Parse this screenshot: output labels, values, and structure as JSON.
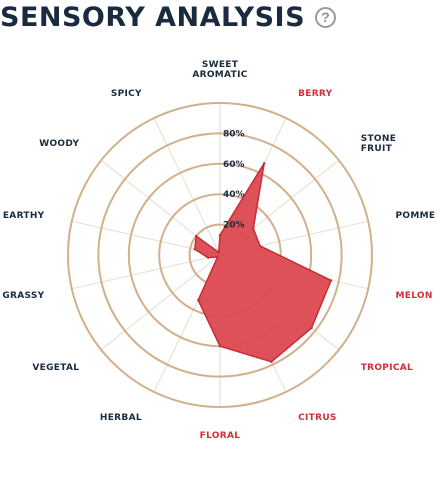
{
  "header": {
    "title": "SENSORY ANALYSIS",
    "help_icon": "question-circle-icon"
  },
  "colors": {
    "navy": "#1a2a3f",
    "highlight": "#d12f3a",
    "ring": "#d2b08c",
    "spoke": "#e6dccf",
    "fill": "#dd4a52",
    "stroke": "#c42d37"
  },
  "chart_data": {
    "type": "radar",
    "title": "SENSORY ANALYSIS",
    "rlim": [
      0,
      100
    ],
    "tick_labels": [
      "20%",
      "40%",
      "60%",
      "80%"
    ],
    "grid": true,
    "categories": [
      {
        "lines": [
          "SWEET",
          "AROMATIC"
        ],
        "highlight": false
      },
      {
        "lines": [
          "BERRY"
        ],
        "highlight": true
      },
      {
        "lines": [
          "STONE",
          "FRUIT"
        ],
        "highlight": false
      },
      {
        "lines": [
          "POMME"
        ],
        "highlight": false
      },
      {
        "lines": [
          "MELON"
        ],
        "highlight": true
      },
      {
        "lines": [
          "TROPICAL"
        ],
        "highlight": true
      },
      {
        "lines": [
          "CITRUS"
        ],
        "highlight": true
      },
      {
        "lines": [
          "FLORAL"
        ],
        "highlight": true
      },
      {
        "lines": [
          "HERBAL"
        ],
        "highlight": false
      },
      {
        "lines": [
          "VEGETAL"
        ],
        "highlight": false
      },
      {
        "lines": [
          "GRASSY"
        ],
        "highlight": false
      },
      {
        "lines": [
          "EARTHY"
        ],
        "highlight": false
      },
      {
        "lines": [
          "WOODY"
        ],
        "highlight": false
      },
      {
        "lines": [
          "SPICY"
        ],
        "highlight": false
      }
    ],
    "values": [
      13,
      67,
      28,
      27,
      75,
      77,
      78,
      60,
      33,
      2,
      8,
      17,
      20,
      2
    ]
  }
}
